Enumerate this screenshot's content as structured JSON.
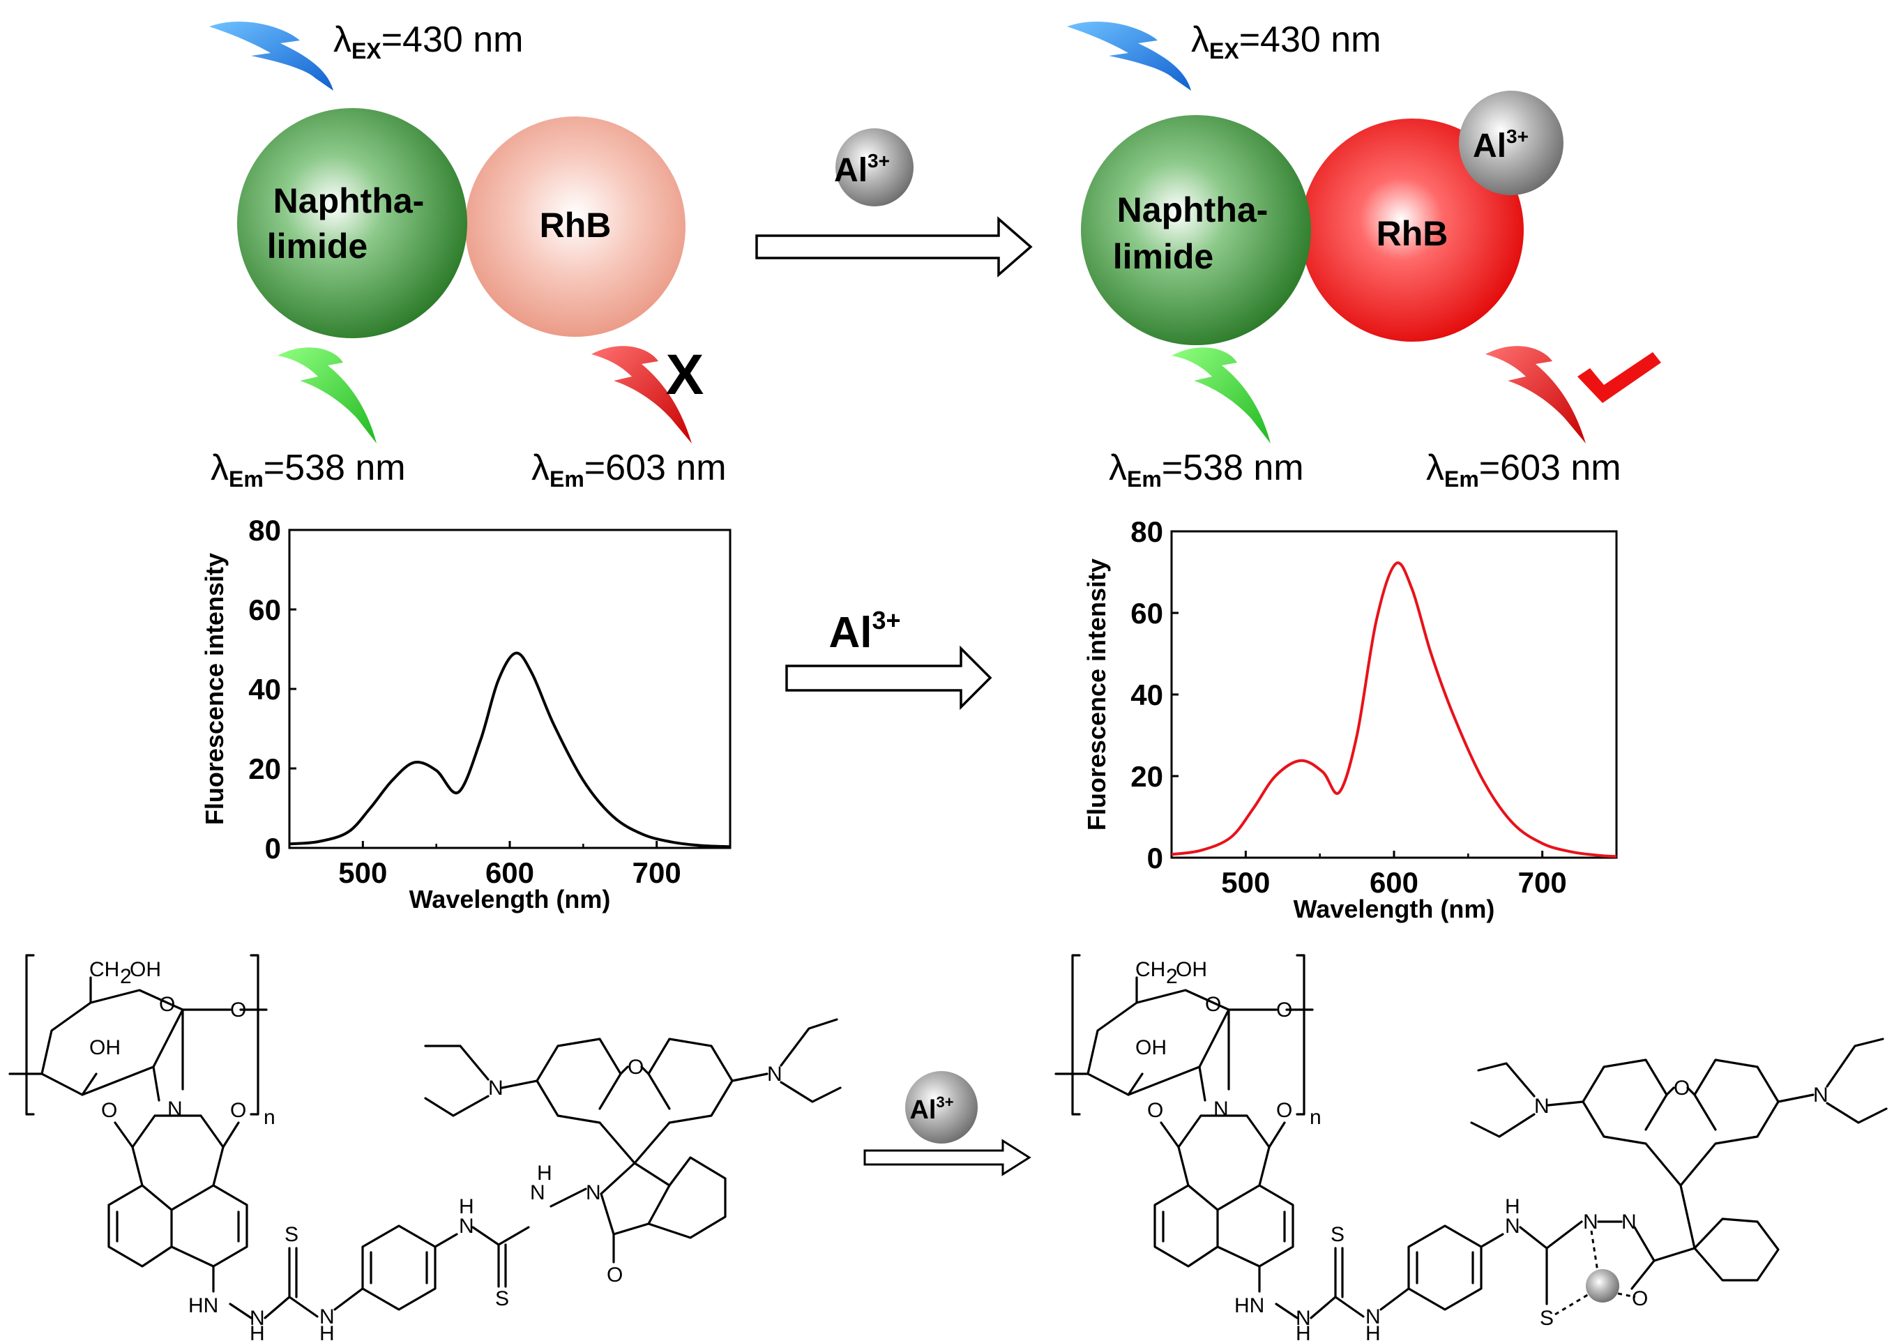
{
  "top": {
    "left": {
      "excitation": {
        "lambda": "λ",
        "sub": "EX",
        "value": "=430 nm"
      },
      "naphthalimide": {
        "line1": "Naphtha-",
        "line2": "limide"
      },
      "rhb": "RhB",
      "emission_green": {
        "lambda": "λ",
        "sub": "Em",
        "value": "=538 nm"
      },
      "emission_red": {
        "lambda": "λ",
        "sub": "Em",
        "value": "=603 nm"
      },
      "red_status": "X"
    },
    "arrow_reagent": {
      "base": "Al",
      "sup": "3+"
    },
    "right": {
      "excitation": {
        "lambda": "λ",
        "sub": "EX",
        "value": "=430 nm"
      },
      "naphthalimide": {
        "line1": "Naphtha-",
        "line2": "limide"
      },
      "rhb": "RhB",
      "bound_ion": {
        "base": "Al",
        "sup": "3+"
      },
      "emission_green": {
        "lambda": "λ",
        "sub": "Em",
        "value": "=538 nm"
      },
      "emission_red": {
        "lambda": "λ",
        "sub": "Em",
        "value": "=603 nm"
      }
    }
  },
  "middle": {
    "arrow_reagent": {
      "base": "Al",
      "sup": "3+"
    }
  },
  "bottom": {
    "arrow_reagent": {
      "base": "Al",
      "sup": "3+"
    },
    "left_molecule": {
      "labels": [
        "CH",
        "2",
        "OH",
        "O",
        "O",
        "OH",
        "N",
        "O",
        "O",
        "n",
        "HN",
        "N",
        "H",
        "S",
        "N",
        "H",
        "N",
        "H",
        "S",
        "H",
        "N",
        "N",
        "O",
        "O",
        "N",
        "N"
      ]
    },
    "right_molecule": {
      "labels": [
        "CH",
        "2",
        "OH",
        "O",
        "O",
        "OH",
        "N",
        "O",
        "O",
        "n",
        "HN",
        "N",
        "H",
        "S",
        "N",
        "H",
        "N",
        "H",
        "S",
        "N",
        "N",
        "O",
        "O",
        "N",
        "N"
      ]
    }
  },
  "colors": {
    "naphthalimide_green": "#2f8a2f",
    "rhb_quenched": "#f0a898",
    "rhb_active": "#ff1a1a",
    "ion_grey": "#8a8a8a",
    "excitation_blue": "#1e7fe6",
    "emission_green": "#33dd33",
    "emission_red": "#ee1111",
    "spectrum_before": "#000000",
    "spectrum_after": "#e8121a"
  },
  "chart_data": [
    {
      "type": "line",
      "title": "",
      "xlabel": "Wavelength (nm)",
      "ylabel": "Fluorescence intensity",
      "xlim": [
        450,
        750
      ],
      "ylim": [
        0,
        80
      ],
      "xticks": [
        500,
        600,
        700
      ],
      "yticks": [
        0,
        20,
        40,
        60,
        80
      ],
      "series": [
        {
          "color": "#000000",
          "x": [
            450,
            470,
            490,
            505,
            520,
            535,
            550,
            565,
            580,
            592,
            604,
            615,
            630,
            650,
            670,
            690,
            710,
            730,
            750
          ],
          "y": [
            1,
            1.6,
            4,
            10,
            17,
            21.5,
            19.5,
            14,
            27,
            42,
            49,
            44,
            31,
            17,
            8,
            3.5,
            1.5,
            0.6,
            0.3
          ]
        }
      ]
    },
    {
      "type": "line",
      "title": "",
      "xlabel": "Wavelength (nm)",
      "ylabel": "Fluorescence intensity",
      "xlim": [
        450,
        750
      ],
      "ylim": [
        0,
        80
      ],
      "xticks": [
        500,
        600,
        700
      ],
      "yticks": [
        0,
        20,
        40,
        60,
        80
      ],
      "series": [
        {
          "color": "#e8121a",
          "x": [
            450,
            470,
            490,
            505,
            520,
            537,
            552,
            563,
            575,
            588,
            601,
            612,
            625,
            640,
            660,
            680,
            700,
            720,
            740,
            750
          ],
          "y": [
            0.8,
            1.8,
            5,
            12,
            20,
            23.8,
            21,
            16,
            30,
            58,
            72,
            66,
            50,
            35,
            19,
            8.5,
            3.5,
            1.4,
            0.5,
            0.3
          ]
        }
      ]
    }
  ]
}
